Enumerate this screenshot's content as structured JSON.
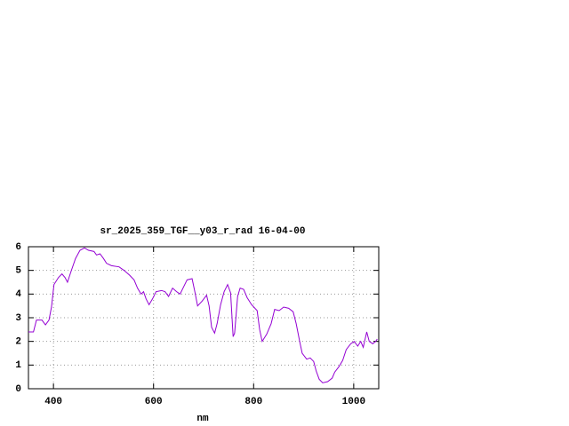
{
  "chart_data": {
    "type": "line",
    "title": "sr_2025_359_TGF__y03_r_rad 16-04-00",
    "x_label": "nm",
    "x": [
      350,
      360,
      366,
      377,
      384,
      391,
      396,
      401,
      410,
      417,
      423,
      428,
      435,
      444,
      453,
      462,
      470,
      481,
      486,
      493,
      500,
      506,
      516,
      531,
      541,
      552,
      561,
      568,
      575,
      580,
      585,
      591,
      598,
      605,
      616,
      623,
      630,
      638,
      646,
      653,
      660,
      667,
      677,
      683,
      688,
      697,
      706,
      711,
      716,
      722,
      727,
      734,
      741,
      748,
      754,
      759,
      762,
      768,
      773,
      780,
      787,
      796,
      807,
      812,
      817,
      826,
      835,
      842,
      851,
      860,
      870,
      879,
      885,
      892,
      897,
      906,
      913,
      920,
      925,
      931,
      938,
      948,
      957,
      962,
      971,
      978,
      985,
      994,
      1001,
      1008,
      1014,
      1019,
      1026,
      1031,
      1038,
      1044,
      1047
    ],
    "values": [
      2.4,
      2.4,
      2.9,
      2.9,
      2.7,
      2.9,
      3.45,
      4.4,
      4.7,
      4.85,
      4.7,
      4.5,
      4.95,
      5.5,
      5.85,
      5.95,
      5.85,
      5.8,
      5.65,
      5.7,
      5.5,
      5.3,
      5.2,
      5.15,
      5.0,
      4.8,
      4.6,
      4.25,
      4.0,
      4.1,
      3.8,
      3.55,
      3.8,
      4.1,
      4.15,
      4.1,
      3.9,
      4.25,
      4.1,
      4.0,
      4.3,
      4.6,
      4.65,
      4.05,
      3.5,
      3.7,
      3.95,
      3.5,
      2.6,
      2.35,
      2.75,
      3.55,
      4.1,
      4.4,
      4.05,
      2.2,
      2.35,
      3.9,
      4.25,
      4.2,
      3.85,
      3.55,
      3.3,
      2.5,
      2.0,
      2.3,
      2.75,
      3.35,
      3.3,
      3.45,
      3.4,
      3.25,
      2.75,
      2.0,
      1.5,
      1.25,
      1.3,
      1.15,
      0.75,
      0.4,
      0.25,
      0.3,
      0.45,
      0.7,
      0.95,
      1.2,
      1.65,
      1.9,
      2.0,
      1.8,
      2.0,
      1.75,
      2.4,
      2.0,
      1.9,
      2.0,
      2.1
    ],
    "color": "#9400d3",
    "xlim": [
      350,
      1050
    ],
    "xticks": [
      400,
      600,
      800,
      1000
    ],
    "ylim": [
      0,
      6
    ],
    "yticks": [
      0,
      1,
      2,
      3,
      4,
      5,
      6
    ],
    "grid": true
  }
}
